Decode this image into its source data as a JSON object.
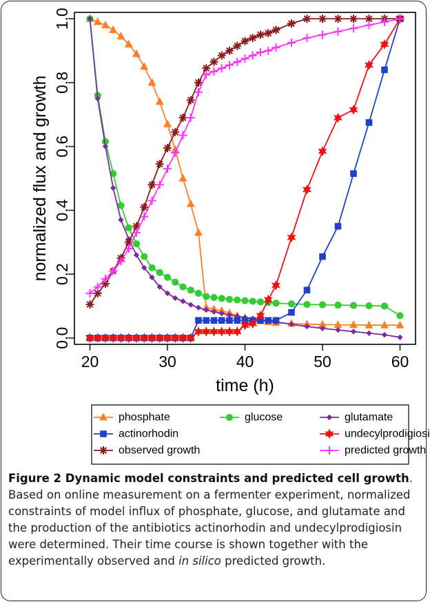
{
  "chart_data": {
    "type": "line",
    "xlabel": "time (h)",
    "ylabel": "normalized flux and growth",
    "xlim": [
      18,
      62
    ],
    "ylim": [
      -0.02,
      1.02
    ],
    "x_ticks": [
      20,
      30,
      40,
      50,
      60
    ],
    "y_ticks": [
      0.0,
      0.2,
      0.4,
      0.6,
      0.8,
      1.0
    ],
    "x_tick_labels": [
      "20",
      "30",
      "40",
      "50",
      "60"
    ],
    "y_tick_labels": [
      "0.0",
      "0.2",
      "0.4",
      "0.6",
      "0.8",
      "1.0"
    ],
    "grid": false,
    "legend_position": "below-plot",
    "series": [
      {
        "name": "phosphate",
        "color": "#ff7f24",
        "marker": "triangle",
        "x": [
          20,
          21,
          22,
          23,
          24,
          25,
          26,
          27,
          28,
          29,
          30,
          31,
          32,
          33,
          34,
          35,
          36,
          37,
          38,
          39,
          40,
          41,
          42,
          43,
          44,
          46,
          48,
          50,
          52,
          54,
          56,
          58,
          60
        ],
        "y": [
          1.0,
          0.99,
          0.98,
          0.965,
          0.945,
          0.92,
          0.89,
          0.85,
          0.8,
          0.74,
          0.67,
          0.59,
          0.5,
          0.42,
          0.33,
          0.095,
          0.09,
          0.085,
          0.078,
          0.07,
          0.063,
          0.058,
          0.053,
          0.05,
          0.048,
          0.045,
          0.043,
          0.042,
          0.041,
          0.041,
          0.04,
          0.04,
          0.04
        ]
      },
      {
        "name": "glucose",
        "color": "#33cc33",
        "marker": "circle",
        "x": [
          20,
          21,
          22,
          23,
          24,
          25,
          26,
          27,
          28,
          29,
          30,
          31,
          32,
          33,
          34,
          35,
          36,
          37,
          38,
          39,
          40,
          41,
          42,
          43,
          44,
          46,
          48,
          50,
          52,
          54,
          56,
          58,
          60
        ],
        "y": [
          1.0,
          0.76,
          0.615,
          0.515,
          0.415,
          0.345,
          0.295,
          0.255,
          0.22,
          0.205,
          0.19,
          0.175,
          0.16,
          0.15,
          0.14,
          0.13,
          0.127,
          0.124,
          0.121,
          0.119,
          0.117,
          0.115,
          0.113,
          0.111,
          0.109,
          0.107,
          0.105,
          0.104,
          0.103,
          0.102,
          0.101,
          0.1,
          0.07
        ]
      },
      {
        "name": "glutamate",
        "color": "#7a2b9e",
        "marker": "diamond",
        "x": [
          20,
          21,
          22,
          23,
          24,
          25,
          26,
          27,
          28,
          29,
          30,
          31,
          32,
          33,
          34,
          35,
          36,
          37,
          38,
          39,
          40,
          41,
          42,
          43,
          44,
          46,
          48,
          50,
          52,
          54,
          56,
          58,
          60
        ],
        "y": [
          1.0,
          0.75,
          0.6,
          0.47,
          0.37,
          0.31,
          0.26,
          0.22,
          0.19,
          0.16,
          0.14,
          0.125,
          0.115,
          0.104,
          0.095,
          0.088,
          0.082,
          0.077,
          0.072,
          0.068,
          0.064,
          0.06,
          0.057,
          0.053,
          0.05,
          0.043,
          0.036,
          0.03,
          0.025,
          0.02,
          0.015,
          0.01,
          0.002
        ]
      },
      {
        "name": "actinorhodin",
        "color": "#1f3fcc",
        "marker": "square",
        "x": [
          20,
          21,
          22,
          23,
          24,
          25,
          26,
          27,
          28,
          29,
          30,
          31,
          32,
          33,
          34,
          35,
          36,
          37,
          38,
          39,
          40,
          41,
          42,
          43,
          44,
          46,
          48,
          50,
          52,
          54,
          56,
          58,
          60
        ],
        "y": [
          0,
          0,
          0,
          0,
          0,
          0,
          0,
          0,
          0,
          0,
          0,
          0,
          0,
          0,
          0.055,
          0.055,
          0.055,
          0.055,
          0.055,
          0.055,
          0.055,
          0.055,
          0.055,
          0.055,
          0.055,
          0.08,
          0.15,
          0.255,
          0.35,
          0.515,
          0.675,
          0.84,
          1.0
        ]
      },
      {
        "name": "undecylprodigiosin",
        "color": "#ee1111",
        "marker": "star",
        "x": [
          20,
          21,
          22,
          23,
          24,
          25,
          26,
          27,
          28,
          29,
          30,
          31,
          32,
          33,
          34,
          35,
          36,
          37,
          38,
          39,
          40,
          41,
          42,
          43,
          44,
          46,
          48,
          50,
          52,
          54,
          56,
          58,
          60
        ],
        "y": [
          0,
          0,
          0,
          0,
          0,
          0,
          0,
          0,
          0,
          0,
          0,
          0,
          0,
          0,
          0.02,
          0.02,
          0.02,
          0.02,
          0.02,
          0.02,
          0.04,
          0.045,
          0.07,
          0.12,
          0.165,
          0.315,
          0.465,
          0.585,
          0.69,
          0.715,
          0.855,
          0.92,
          1.0
        ]
      },
      {
        "name": "observed growth",
        "color": "#8b1a1a",
        "marker": "asterisk",
        "x": [
          20,
          21,
          22,
          23,
          24,
          25,
          26,
          27,
          28,
          29,
          30,
          31,
          32,
          33,
          34,
          35,
          36,
          37,
          38,
          39,
          40,
          41,
          42,
          43,
          44,
          46,
          48,
          50,
          52,
          54,
          56,
          58,
          60
        ],
        "y": [
          0.105,
          0.14,
          0.17,
          0.21,
          0.25,
          0.3,
          0.35,
          0.41,
          0.48,
          0.545,
          0.595,
          0.645,
          0.69,
          0.745,
          0.8,
          0.845,
          0.865,
          0.885,
          0.9,
          0.915,
          0.93,
          0.94,
          0.95,
          0.955,
          0.965,
          0.985,
          1.0,
          1.0,
          1.0,
          1.0,
          1.0,
          1.0,
          1.0
        ]
      },
      {
        "name": "predicted growth",
        "color": "#ff33ff",
        "marker": "plus",
        "x": [
          20,
          21,
          22,
          23,
          24,
          25,
          26,
          27,
          28,
          29,
          30,
          31,
          32,
          33,
          34,
          35,
          36,
          37,
          38,
          39,
          40,
          41,
          42,
          43,
          44,
          46,
          48,
          50,
          52,
          54,
          56,
          58,
          60
        ],
        "y": [
          0.14,
          0.16,
          0.185,
          0.21,
          0.24,
          0.28,
          0.33,
          0.38,
          0.43,
          0.48,
          0.53,
          0.58,
          0.635,
          0.69,
          0.77,
          0.825,
          0.835,
          0.845,
          0.855,
          0.865,
          0.875,
          0.885,
          0.895,
          0.9,
          0.91,
          0.925,
          0.94,
          0.95,
          0.96,
          0.97,
          0.98,
          0.99,
          1.0
        ]
      }
    ]
  },
  "caption": {
    "title": "Figure 2 Dynamic model constraints and predicted cell growth",
    "body_before_italic": "Based on online measurement on a fermenter experiment, normalized constraints of model influx of phosphate, glucose, and glutamate and the production of the antibiotics actinorhodin and undecylprodigiosin were determined. Their time course is shown together with the experimentally observed and ",
    "italic": "in silico",
    "body_after_italic": " predicted growth."
  }
}
